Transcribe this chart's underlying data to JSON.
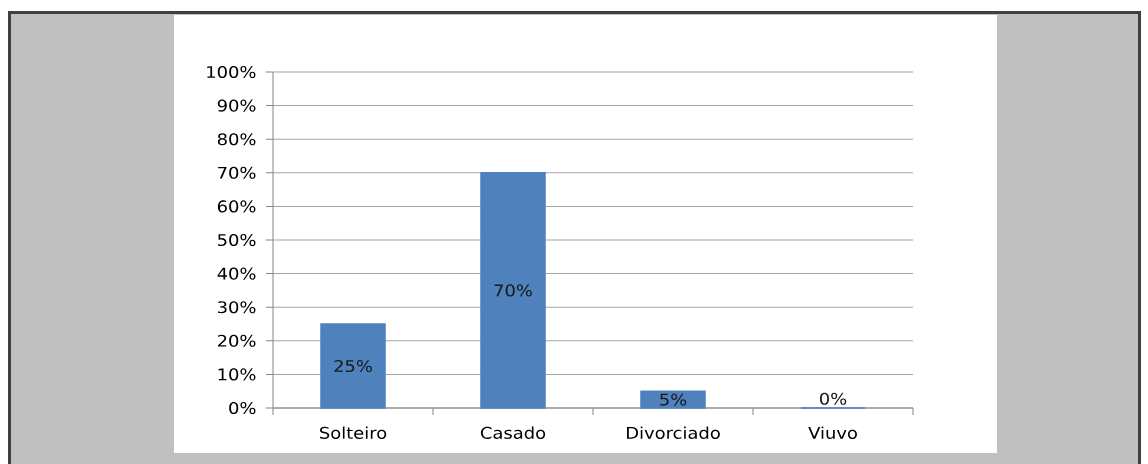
{
  "chart_data": {
    "type": "bar",
    "categories": [
      "Solteiro",
      "Casado",
      "Divorciado",
      "Viuvo"
    ],
    "values": [
      25,
      70,
      5,
      0
    ],
    "color": "#4f81bd",
    "value_labels": [
      "25%",
      "70%",
      "5%",
      "0%"
    ],
    "ylim": [
      0,
      100
    ],
    "yticks": [
      {
        "value": 0,
        "label": "0%"
      },
      {
        "value": 10,
        "label": "10%"
      },
      {
        "value": 20,
        "label": "20%"
      },
      {
        "value": 30,
        "label": "30%"
      },
      {
        "value": 40,
        "label": "40%"
      },
      {
        "value": 50,
        "label": "50%"
      },
      {
        "value": 60,
        "label": "60%"
      },
      {
        "value": 70,
        "label": "70%"
      },
      {
        "value": 80,
        "label": "80%"
      },
      {
        "value": 90,
        "label": "90%"
      },
      {
        "value": 100,
        "label": "100%"
      }
    ],
    "grid": "y"
  }
}
